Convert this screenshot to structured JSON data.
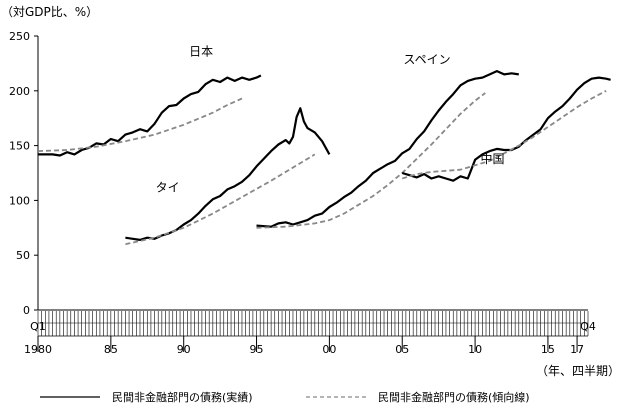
{
  "chart_data": {
    "type": "line",
    "y_unit_label": "（対GDP比、%）",
    "x_unit_label": "（年、四半期）",
    "ylim": [
      0,
      250
    ],
    "y_ticks": [
      0,
      50,
      100,
      150,
      200,
      250
    ],
    "xlim": [
      1980.0,
      2017.75
    ],
    "x_tick_labels": [
      {
        "x": 1980,
        "label": "1980"
      },
      {
        "x": 1985,
        "label": "85"
      },
      {
        "x": 1990,
        "label": "90"
      },
      {
        "x": 1995,
        "label": "95"
      },
      {
        "x": 2000,
        "label": "00"
      },
      {
        "x": 2005,
        "label": "05"
      },
      {
        "x": 2010,
        "label": "10"
      },
      {
        "x": 2015,
        "label": "15"
      },
      {
        "x": 2017,
        "label": "17"
      }
    ],
    "x_quarter_labels": [
      {
        "x": 1980.0,
        "label": "Q1"
      },
      {
        "x": 2017.75,
        "label": "Q4"
      }
    ],
    "grid": false,
    "legend_position": "bottom",
    "legend": [
      {
        "label": "民間非金融部門の債務(実績)",
        "style": "solid"
      },
      {
        "label": "民間非金融部門の債務(傾向線)",
        "style": "dashed"
      }
    ],
    "series": [
      {
        "name": "日本",
        "kind": "actual",
        "points": [
          [
            1980.0,
            142
          ],
          [
            1981.0,
            142
          ],
          [
            1981.5,
            141
          ],
          [
            1982.0,
            144
          ],
          [
            1982.5,
            142
          ],
          [
            1983.0,
            146
          ],
          [
            1983.5,
            148
          ],
          [
            1984.0,
            152
          ],
          [
            1984.5,
            151
          ],
          [
            1985.0,
            156
          ],
          [
            1985.5,
            154
          ],
          [
            1986.0,
            160
          ],
          [
            1986.5,
            162
          ],
          [
            1987.0,
            165
          ],
          [
            1987.5,
            163
          ],
          [
            1988.0,
            170
          ],
          [
            1988.5,
            180
          ],
          [
            1989.0,
            186
          ],
          [
            1989.5,
            187
          ],
          [
            1990.0,
            193
          ],
          [
            1990.5,
            197
          ],
          [
            1991.0,
            199
          ],
          [
            1991.5,
            206
          ],
          [
            1992.0,
            210
          ],
          [
            1992.5,
            208
          ],
          [
            1993.0,
            212
          ],
          [
            1993.5,
            209
          ],
          [
            1994.0,
            212
          ],
          [
            1994.5,
            210
          ],
          [
            1995.0,
            212
          ],
          [
            1995.3,
            214
          ]
        ]
      },
      {
        "name": "日本",
        "kind": "trend",
        "points": [
          [
            1980.0,
            145
          ],
          [
            1982.0,
            146
          ],
          [
            1984.0,
            149
          ],
          [
            1986.0,
            154
          ],
          [
            1988.0,
            160
          ],
          [
            1990.0,
            169
          ],
          [
            1992.0,
            180
          ],
          [
            1993.0,
            187
          ],
          [
            1994.0,
            193
          ]
        ]
      },
      {
        "name": "タイ",
        "kind": "actual",
        "points": [
          [
            1986.0,
            66
          ],
          [
            1986.5,
            65
          ],
          [
            1987.0,
            64
          ],
          [
            1987.5,
            66
          ],
          [
            1988.0,
            65
          ],
          [
            1988.5,
            68
          ],
          [
            1989.0,
            70
          ],
          [
            1989.5,
            73
          ],
          [
            1990.0,
            78
          ],
          [
            1990.5,
            82
          ],
          [
            1991.0,
            88
          ],
          [
            1991.5,
            95
          ],
          [
            1992.0,
            101
          ],
          [
            1992.5,
            104
          ],
          [
            1993.0,
            110
          ],
          [
            1993.5,
            113
          ],
          [
            1994.0,
            117
          ],
          [
            1994.5,
            123
          ],
          [
            1995.0,
            131
          ],
          [
            1995.5,
            138
          ],
          [
            1996.0,
            145
          ],
          [
            1996.5,
            151
          ],
          [
            1997.0,
            155
          ],
          [
            1997.25,
            152
          ],
          [
            1997.5,
            158
          ],
          [
            1997.75,
            176
          ],
          [
            1998.0,
            184
          ],
          [
            1998.25,
            172
          ],
          [
            1998.5,
            166
          ],
          [
            1999.0,
            162
          ],
          [
            1999.5,
            154
          ],
          [
            2000.0,
            142
          ]
        ]
      },
      {
        "name": "タイ",
        "kind": "trend",
        "points": [
          [
            1986.0,
            60
          ],
          [
            1988.0,
            66
          ],
          [
            1990.0,
            75
          ],
          [
            1992.0,
            88
          ],
          [
            1994.0,
            103
          ],
          [
            1996.0,
            118
          ],
          [
            1998.0,
            134
          ],
          [
            1999.0,
            142
          ]
        ]
      },
      {
        "name": "スペイン",
        "kind": "actual",
        "points": [
          [
            1995.0,
            77
          ],
          [
            1996.0,
            76
          ],
          [
            1996.5,
            79
          ],
          [
            1997.0,
            80
          ],
          [
            1997.5,
            78
          ],
          [
            1998.0,
            80
          ],
          [
            1998.5,
            82
          ],
          [
            1999.0,
            86
          ],
          [
            1999.5,
            88
          ],
          [
            2000.0,
            94
          ],
          [
            2000.5,
            98
          ],
          [
            2001.0,
            103
          ],
          [
            2001.5,
            107
          ],
          [
            2002.0,
            113
          ],
          [
            2002.5,
            118
          ],
          [
            2003.0,
            125
          ],
          [
            2003.5,
            129
          ],
          [
            2004.0,
            133
          ],
          [
            2004.5,
            136
          ],
          [
            2005.0,
            143
          ],
          [
            2005.5,
            147
          ],
          [
            2006.0,
            156
          ],
          [
            2006.5,
            163
          ],
          [
            2007.0,
            173
          ],
          [
            2007.5,
            182
          ],
          [
            2008.0,
            190
          ],
          [
            2008.5,
            197
          ],
          [
            2009.0,
            205
          ],
          [
            2009.5,
            209
          ],
          [
            2010.0,
            211
          ],
          [
            2010.5,
            212
          ],
          [
            2011.0,
            215
          ],
          [
            2011.5,
            218
          ],
          [
            2012.0,
            215
          ],
          [
            2012.5,
            216
          ],
          [
            2013.0,
            215
          ]
        ]
      },
      {
        "name": "スペイン",
        "kind": "trend",
        "points": [
          [
            1995.0,
            75
          ],
          [
            1997.0,
            76
          ],
          [
            1999.0,
            79
          ],
          [
            2000.0,
            82
          ],
          [
            2001.0,
            88
          ],
          [
            2002.0,
            96
          ],
          [
            2003.0,
            104
          ],
          [
            2004.0,
            114
          ],
          [
            2005.0,
            125
          ],
          [
            2006.0,
            138
          ],
          [
            2007.0,
            151
          ],
          [
            2008.0,
            165
          ],
          [
            2009.0,
            179
          ],
          [
            2010.0,
            191
          ],
          [
            2010.7,
            198
          ]
        ]
      },
      {
        "name": "中国",
        "kind": "actual",
        "points": [
          [
            2005.0,
            125
          ],
          [
            2005.5,
            123
          ],
          [
            2006.0,
            121
          ],
          [
            2006.5,
            124
          ],
          [
            2007.0,
            120
          ],
          [
            2007.5,
            122
          ],
          [
            2008.0,
            120
          ],
          [
            2008.5,
            118
          ],
          [
            2009.0,
            122
          ],
          [
            2009.5,
            120
          ],
          [
            2010.0,
            137
          ],
          [
            2010.5,
            142
          ],
          [
            2011.0,
            145
          ],
          [
            2011.5,
            147
          ],
          [
            2012.0,
            146
          ],
          [
            2012.5,
            146
          ],
          [
            2013.0,
            149
          ],
          [
            2013.5,
            155
          ],
          [
            2014.0,
            160
          ],
          [
            2014.5,
            165
          ],
          [
            2015.0,
            175
          ],
          [
            2015.5,
            181
          ],
          [
            2016.0,
            186
          ],
          [
            2016.5,
            193
          ],
          [
            2017.0,
            201
          ],
          [
            2017.5,
            207
          ],
          [
            2018.0,
            211
          ],
          [
            2018.5,
            212
          ],
          [
            2019.0,
            211
          ],
          [
            2019.3,
            210
          ]
        ]
      },
      {
        "name": "中国",
        "kind": "trend",
        "points": [
          [
            2005.0,
            120
          ],
          [
            2006.0,
            124
          ],
          [
            2007.0,
            126
          ],
          [
            2008.0,
            127
          ],
          [
            2009.0,
            128
          ],
          [
            2010.0,
            132
          ],
          [
            2011.0,
            136
          ],
          [
            2012.0,
            143
          ],
          [
            2013.0,
            150
          ],
          [
            2014.0,
            158
          ],
          [
            2015.0,
            167
          ],
          [
            2016.0,
            176
          ],
          [
            2017.0,
            185
          ],
          [
            2018.0,
            193
          ],
          [
            2019.0,
            200
          ]
        ]
      }
    ],
    "series_labels": [
      {
        "name": "日本",
        "x": 1991.2,
        "y": 232
      },
      {
        "name": "タイ",
        "x": 1988.9,
        "y": 108
      },
      {
        "name": "スペイン",
        "x": 2006.7,
        "y": 225
      },
      {
        "name": "中国",
        "x": 2011.2,
        "y": 134
      }
    ]
  }
}
